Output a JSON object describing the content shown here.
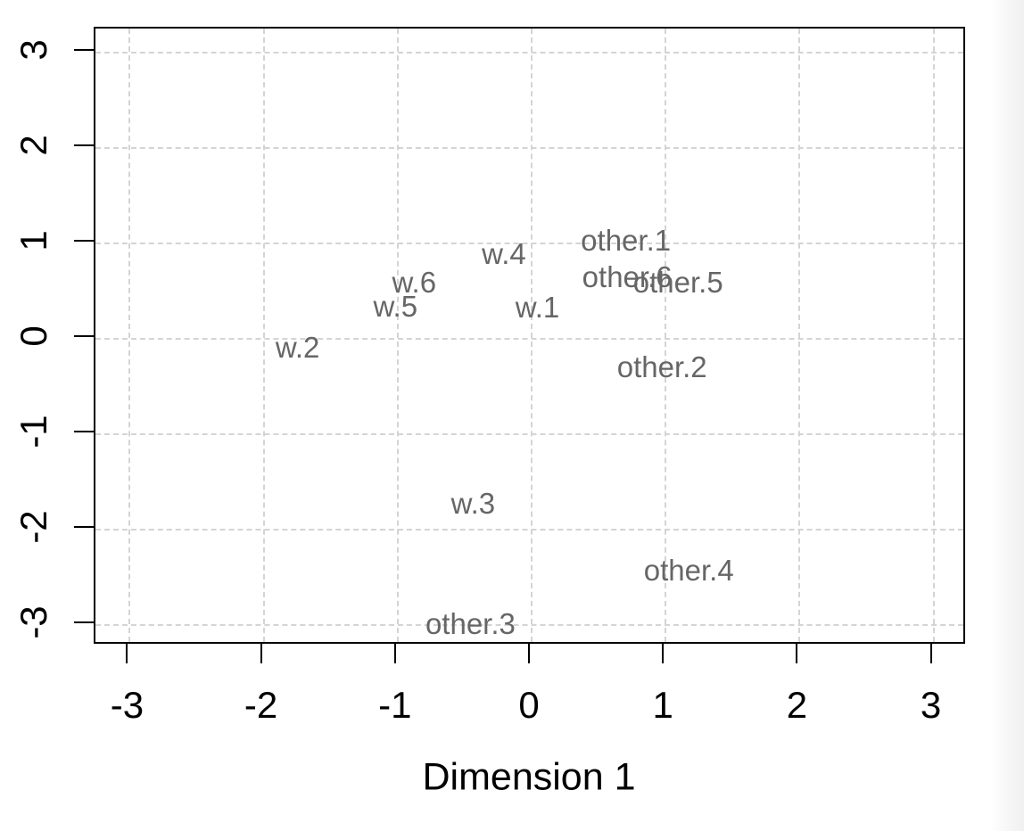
{
  "chart_data": {
    "type": "scatter",
    "title": "",
    "xlabel": "Dimension 1",
    "ylabel": "",
    "xlim": [
      -3.25,
      3.25
    ],
    "ylim": [
      -3.25,
      3.25
    ],
    "x_ticks": [
      "-3",
      "-2",
      "-1",
      "0",
      "1",
      "2",
      "3"
    ],
    "y_ticks": [
      "-3",
      "-2",
      "-1",
      "0",
      "1",
      "2",
      "3"
    ],
    "x_tick_values": [
      -3,
      -2,
      -1,
      0,
      1,
      2,
      3
    ],
    "y_tick_values": [
      -3,
      -2,
      -1,
      0,
      1,
      2,
      3
    ],
    "grid": "dashed gridlines at every integer tick, both axes",
    "legend_position": "none",
    "point_style": "text-labels-only",
    "points": [
      {
        "label": "w.1",
        "group": "w",
        "x": 0.05,
        "y": 0.32
      },
      {
        "label": "w.2",
        "group": "w",
        "x": -1.74,
        "y": -0.1
      },
      {
        "label": "w.3",
        "group": "w",
        "x": -0.43,
        "y": -1.74
      },
      {
        "label": "w.4",
        "group": "w",
        "x": -0.2,
        "y": 0.88
      },
      {
        "label": "w.5",
        "group": "w",
        "x": -1.01,
        "y": 0.33
      },
      {
        "label": "w.6",
        "group": "w",
        "x": -0.87,
        "y": 0.58
      },
      {
        "label": "other.1",
        "group": "other",
        "x": 0.71,
        "y": 1.02
      },
      {
        "label": "other.2",
        "group": "other",
        "x": 0.98,
        "y": -0.31
      },
      {
        "label": "other.3",
        "group": "other",
        "x": -0.45,
        "y": -3.0
      },
      {
        "label": "other.4",
        "group": "other",
        "x": 1.18,
        "y": -2.44
      },
      {
        "label": "other.5",
        "group": "other",
        "x": 1.1,
        "y": 0.58
      },
      {
        "label": "other.6",
        "group": "other",
        "x": 0.72,
        "y": 0.64
      }
    ]
  },
  "colors": {
    "background": "#ffffff",
    "axis": "#000000",
    "tick_text": "#000000",
    "gridline": "#d4d4d4",
    "point_label_text": "#666666",
    "right_edge_shade": "#f0f0f0"
  }
}
